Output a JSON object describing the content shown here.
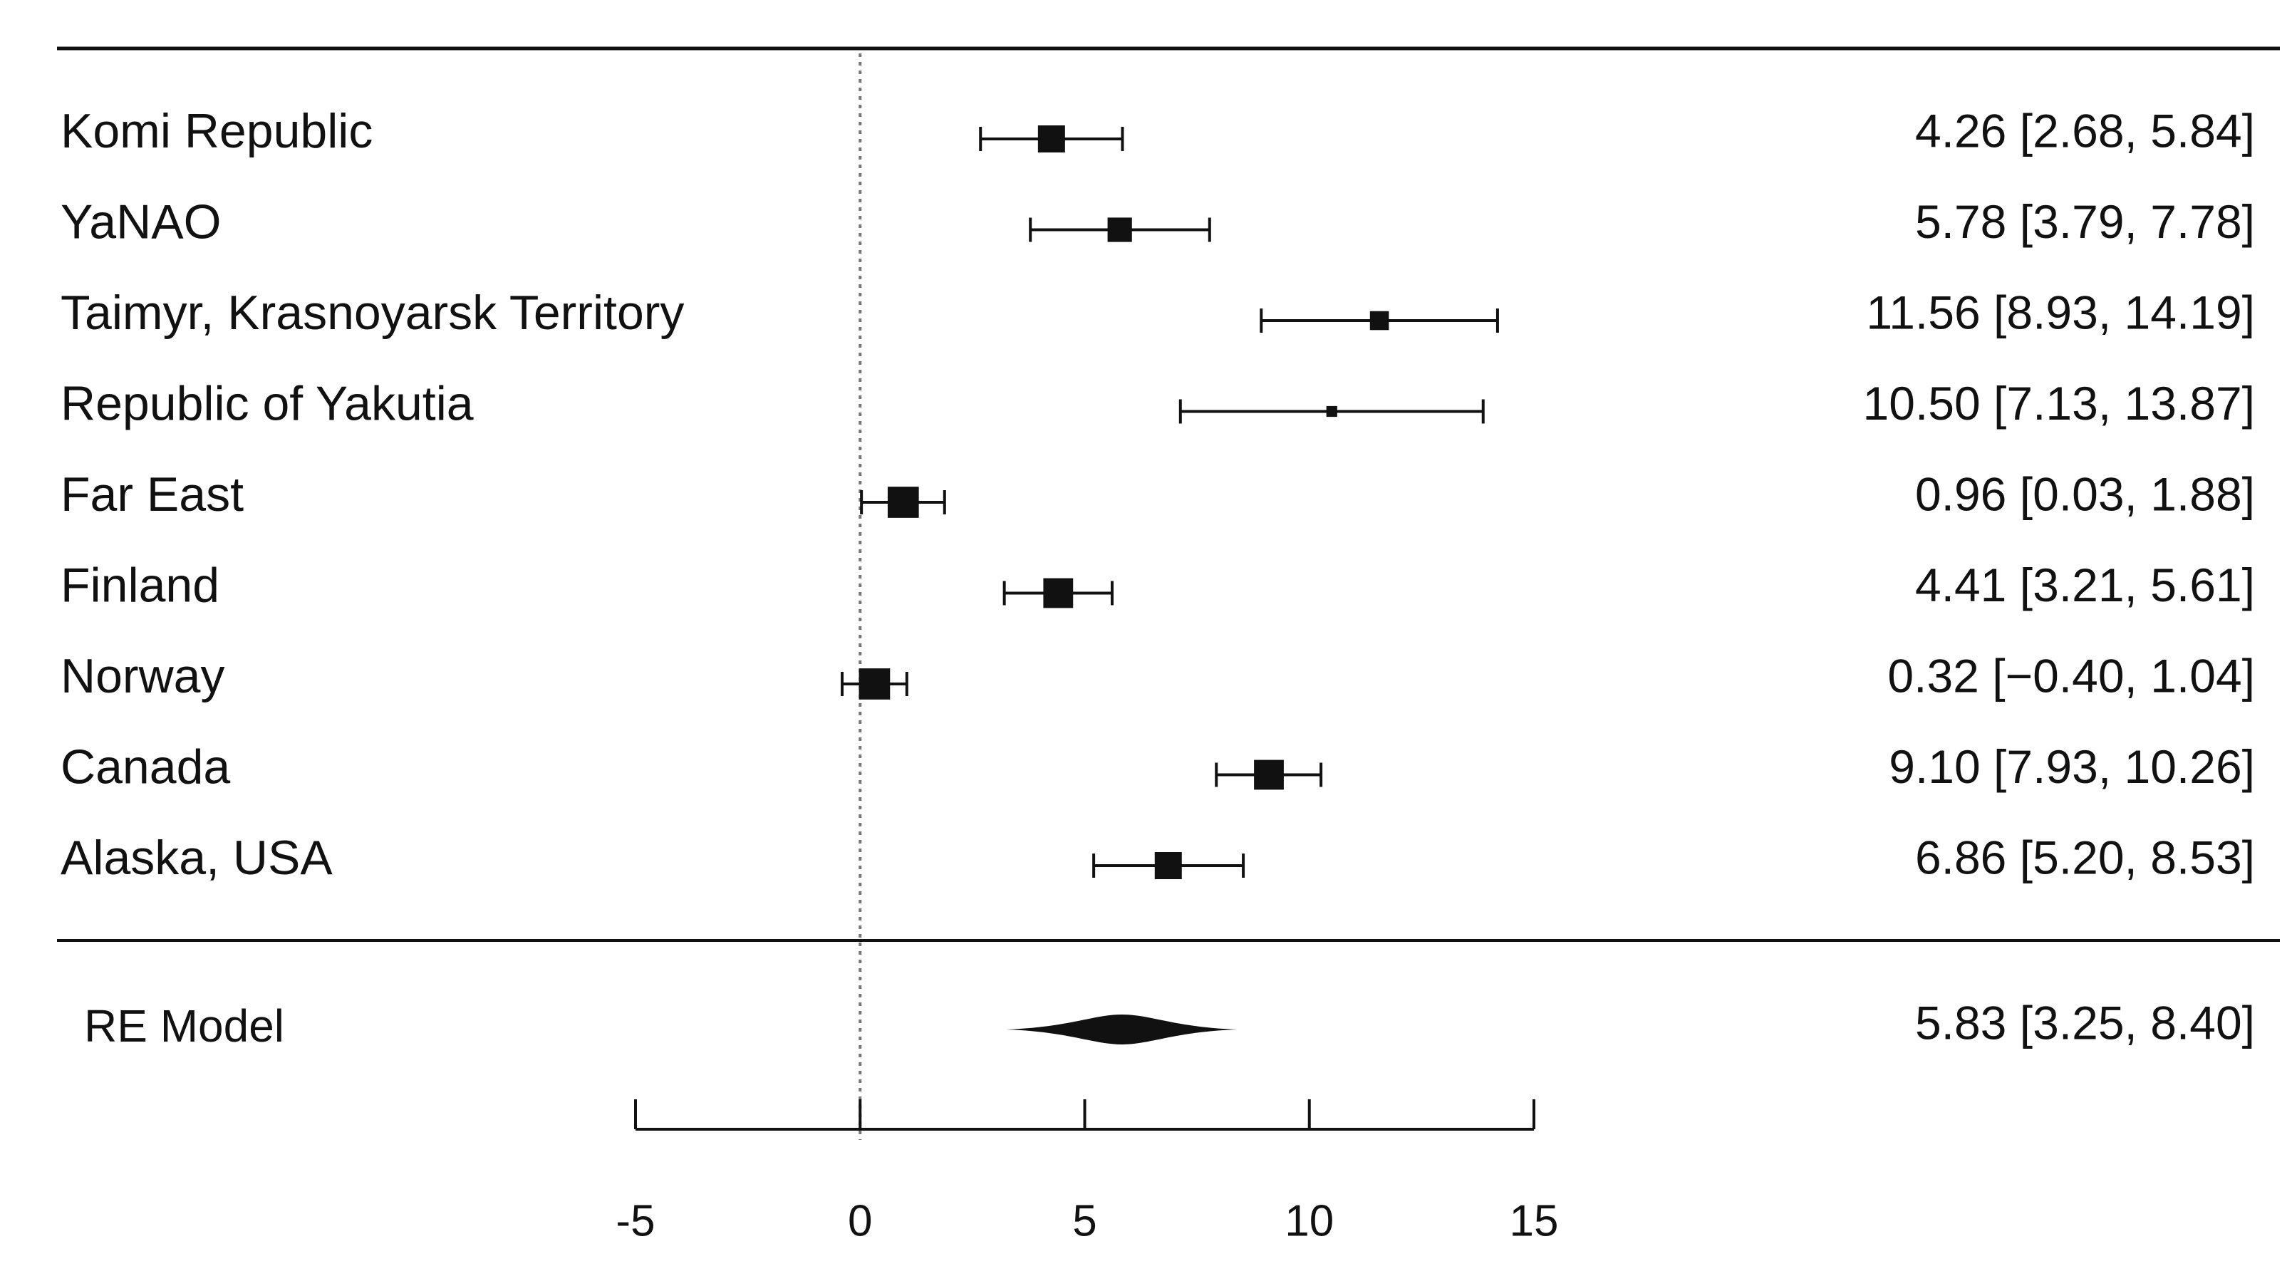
{
  "chart_data": {
    "type": "forest",
    "xlim": [
      -5,
      15
    ],
    "x_ticks": [
      -5,
      0,
      5,
      10,
      15
    ],
    "x_tick_labels": [
      "-5",
      "0",
      "5",
      "10",
      "15"
    ],
    "reference_line": 0,
    "studies": [
      {
        "label": "Komi Republic",
        "estimate": 4.26,
        "lower": 2.68,
        "upper": 5.84,
        "ci_text": "4.26 [2.68,  5.84]",
        "marker_scale": 1.0
      },
      {
        "label": "YaNAO",
        "estimate": 5.78,
        "lower": 3.79,
        "upper": 7.78,
        "ci_text": "5.78 [3.79,  7.78]",
        "marker_scale": 0.9
      },
      {
        "label": "Taimyr, Krasnoyarsk Territory",
        "estimate": 11.56,
        "lower": 8.93,
        "upper": 14.19,
        "ci_text": "11.56 [8.93, 14.19]",
        "marker_scale": 0.7
      },
      {
        "label": "Republic of Yakutia",
        "estimate": 10.5,
        "lower": 7.13,
        "upper": 13.87,
        "ci_text": "10.50 [7.13, 13.87]",
        "marker_scale": 0.4
      },
      {
        "label": "Far East",
        "estimate": 0.96,
        "lower": 0.03,
        "upper": 1.88,
        "ci_text": "0.96 [0.03,  1.88]",
        "marker_scale": 1.15
      },
      {
        "label": "Finland",
        "estimate": 4.41,
        "lower": 3.21,
        "upper": 5.61,
        "ci_text": "4.41 [3.21,  5.61]",
        "marker_scale": 1.1
      },
      {
        "label": "Norway",
        "estimate": 0.32,
        "lower": -0.4,
        "upper": 1.04,
        "ci_text": "0.32 [−0.40,  1.04]",
        "marker_scale": 1.15
      },
      {
        "label": "Canada",
        "estimate": 9.1,
        "lower": 7.93,
        "upper": 10.26,
        "ci_text": "9.10 [7.93, 10.26]",
        "marker_scale": 1.1
      },
      {
        "label": "Alaska, USA",
        "estimate": 6.86,
        "lower": 5.2,
        "upper": 8.53,
        "ci_text": "6.86 [5.20,  8.53]",
        "marker_scale": 1.0
      }
    ],
    "summary": {
      "label": "RE Model",
      "estimate": 5.83,
      "lower": 3.25,
      "upper": 8.4,
      "ci_text": "5.83 [3.25,  8.40]"
    },
    "colors": {
      "ink": "#111111",
      "reference_line": "#777777"
    }
  }
}
